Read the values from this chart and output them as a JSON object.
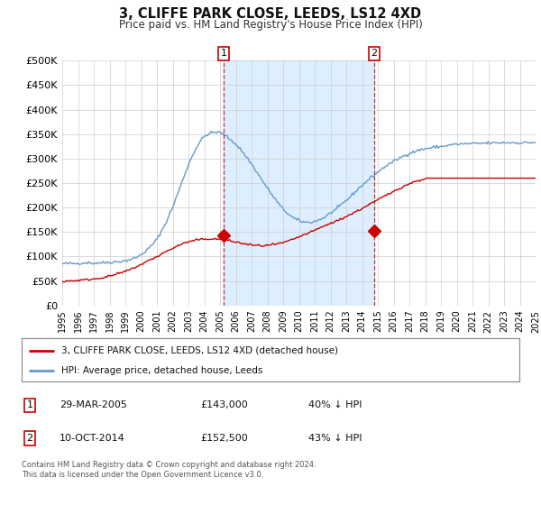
{
  "title": "3, CLIFFE PARK CLOSE, LEEDS, LS12 4XD",
  "subtitle": "Price paid vs. HM Land Registry's House Price Index (HPI)",
  "background_color": "#ffffff",
  "plot_bg_color": "#ffffff",
  "grid_color": "#cccccc",
  "line1_color": "#cc0000",
  "line2_color": "#6699cc",
  "shade_color": "#ddeeff",
  "purchase1": {
    "year": 2005.23,
    "price": 143000,
    "label": "1"
  },
  "purchase2": {
    "year": 2014.77,
    "price": 152500,
    "label": "2"
  },
  "ylim": [
    0,
    500000
  ],
  "xlim": [
    1995,
    2025
  ],
  "yticks": [
    0,
    50000,
    100000,
    150000,
    200000,
    250000,
    300000,
    350000,
    400000,
    450000,
    500000
  ],
  "ytick_labels": [
    "£0",
    "£50K",
    "£100K",
    "£150K",
    "£200K",
    "£250K",
    "£300K",
    "£350K",
    "£400K",
    "£450K",
    "£500K"
  ],
  "legend_label1": "3, CLIFFE PARK CLOSE, LEEDS, LS12 4XD (detached house)",
  "legend_label2": "HPI: Average price, detached house, Leeds",
  "table_row1": [
    "1",
    "29-MAR-2005",
    "£143,000",
    "40% ↓ HPI"
  ],
  "table_row2": [
    "2",
    "10-OCT-2014",
    "£152,500",
    "43% ↓ HPI"
  ],
  "footer": "Contains HM Land Registry data © Crown copyright and database right 2024.\nThis data is licensed under the Open Government Licence v3.0."
}
